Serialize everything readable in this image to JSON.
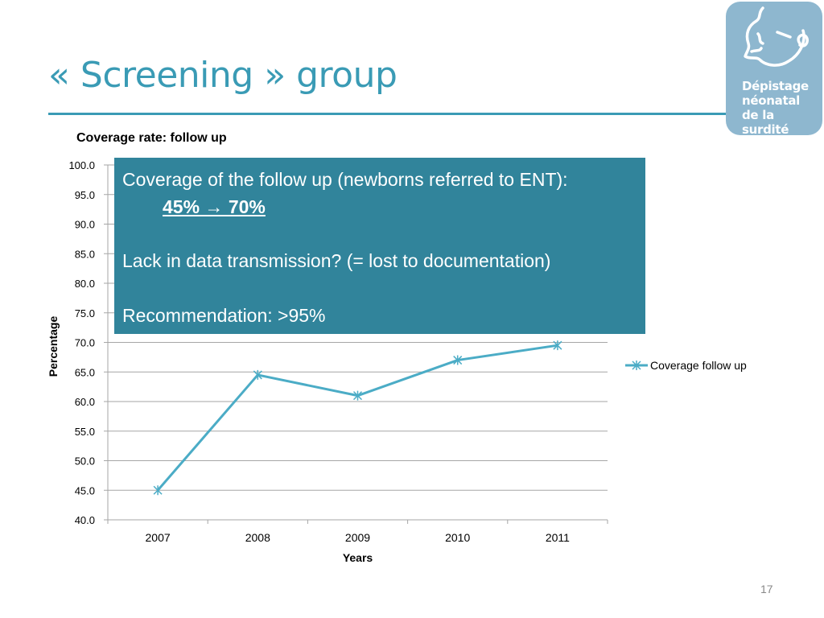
{
  "slide": {
    "title": "« Screening » group",
    "page_number": "17"
  },
  "logo": {
    "lines": [
      "Dépistage",
      "néonatal",
      "de la surdité"
    ]
  },
  "callout": {
    "line1": "Coverage of the follow up (newborns referred to ENT):",
    "coverage_change": "45% → 70%",
    "line2": "Lack in data transmission? (= lost to documentation)",
    "line3": "Recommendation: >95%"
  },
  "colors": {
    "accent": "#3a9bb5",
    "callout_bg": "#31849b",
    "series": "#4bacc6",
    "logo_bg": "#8eb7cf"
  },
  "chart_data": {
    "type": "line",
    "title": "Coverage rate: follow up",
    "xlabel": "Years",
    "ylabel": "Percentage",
    "categories": [
      "2007",
      "2008",
      "2009",
      "2010",
      "2011"
    ],
    "yticks": [
      "40.0",
      "45.0",
      "50.0",
      "55.0",
      "60.0",
      "65.0",
      "70.0",
      "75.0",
      "80.0",
      "85.0",
      "90.0",
      "95.0",
      "100.0"
    ],
    "ylim": [
      40,
      100
    ],
    "grid": true,
    "legend_position": "right",
    "series": [
      {
        "name": "Coverage follow up",
        "values": [
          45.0,
          64.5,
          61.0,
          67.0,
          69.5
        ]
      }
    ]
  }
}
